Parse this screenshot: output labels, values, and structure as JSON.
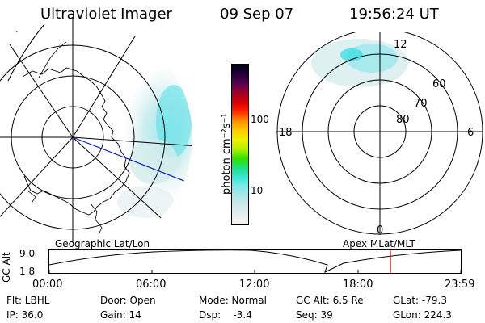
{
  "header": {
    "title": "Ultraviolet Imager",
    "date": "09 Sep 07",
    "time": "19:56:24 UT"
  },
  "colorbar": {
    "unit_label": "photon cm⁻²s⁻¹",
    "ticks": [
      "100",
      "10"
    ],
    "colors": [
      "#f4f4f4",
      "#e6eeee",
      "#cfe9ea",
      "#aee8ea",
      "#7ce8ec",
      "#3ee6d8",
      "#20e08a",
      "#30e000",
      "#b0f000",
      "#f0f000",
      "#ffc800",
      "#ff8c00",
      "#ff2000",
      "#d80000",
      "#a00028",
      "#5a0050",
      "#20003a",
      "#000010"
    ]
  },
  "left_map": {
    "label": "Geographic Lat/Lon"
  },
  "right_map": {
    "label": "Apex MLat/MLT",
    "lat_labels": [
      "60",
      "70",
      "80"
    ],
    "mlt_labels": {
      "top": "12",
      "bottom": "0",
      "left": "18",
      "right": "6"
    }
  },
  "altitude_plot": {
    "axis_title": "GC Alt",
    "y_ticks": [
      "9.0",
      "1.8"
    ],
    "x_ticks": [
      "00:00",
      "06:00",
      "12:00",
      "18:00",
      "23:59"
    ],
    "current_marker_color": "#cc0000"
  },
  "info": {
    "filter": "Flt: LBHL",
    "ip": "IP: 36.0",
    "door": "Door: Open",
    "gain": "Gain: 14",
    "mode": "Mode: Normal",
    "dsp": "Dsp:    -3.4",
    "gc_alt": "GC Alt: 6.5 Re",
    "seq": "Seq: 39",
    "glat": "GLat: -79.3",
    "glon": "GLon: 224.3"
  }
}
